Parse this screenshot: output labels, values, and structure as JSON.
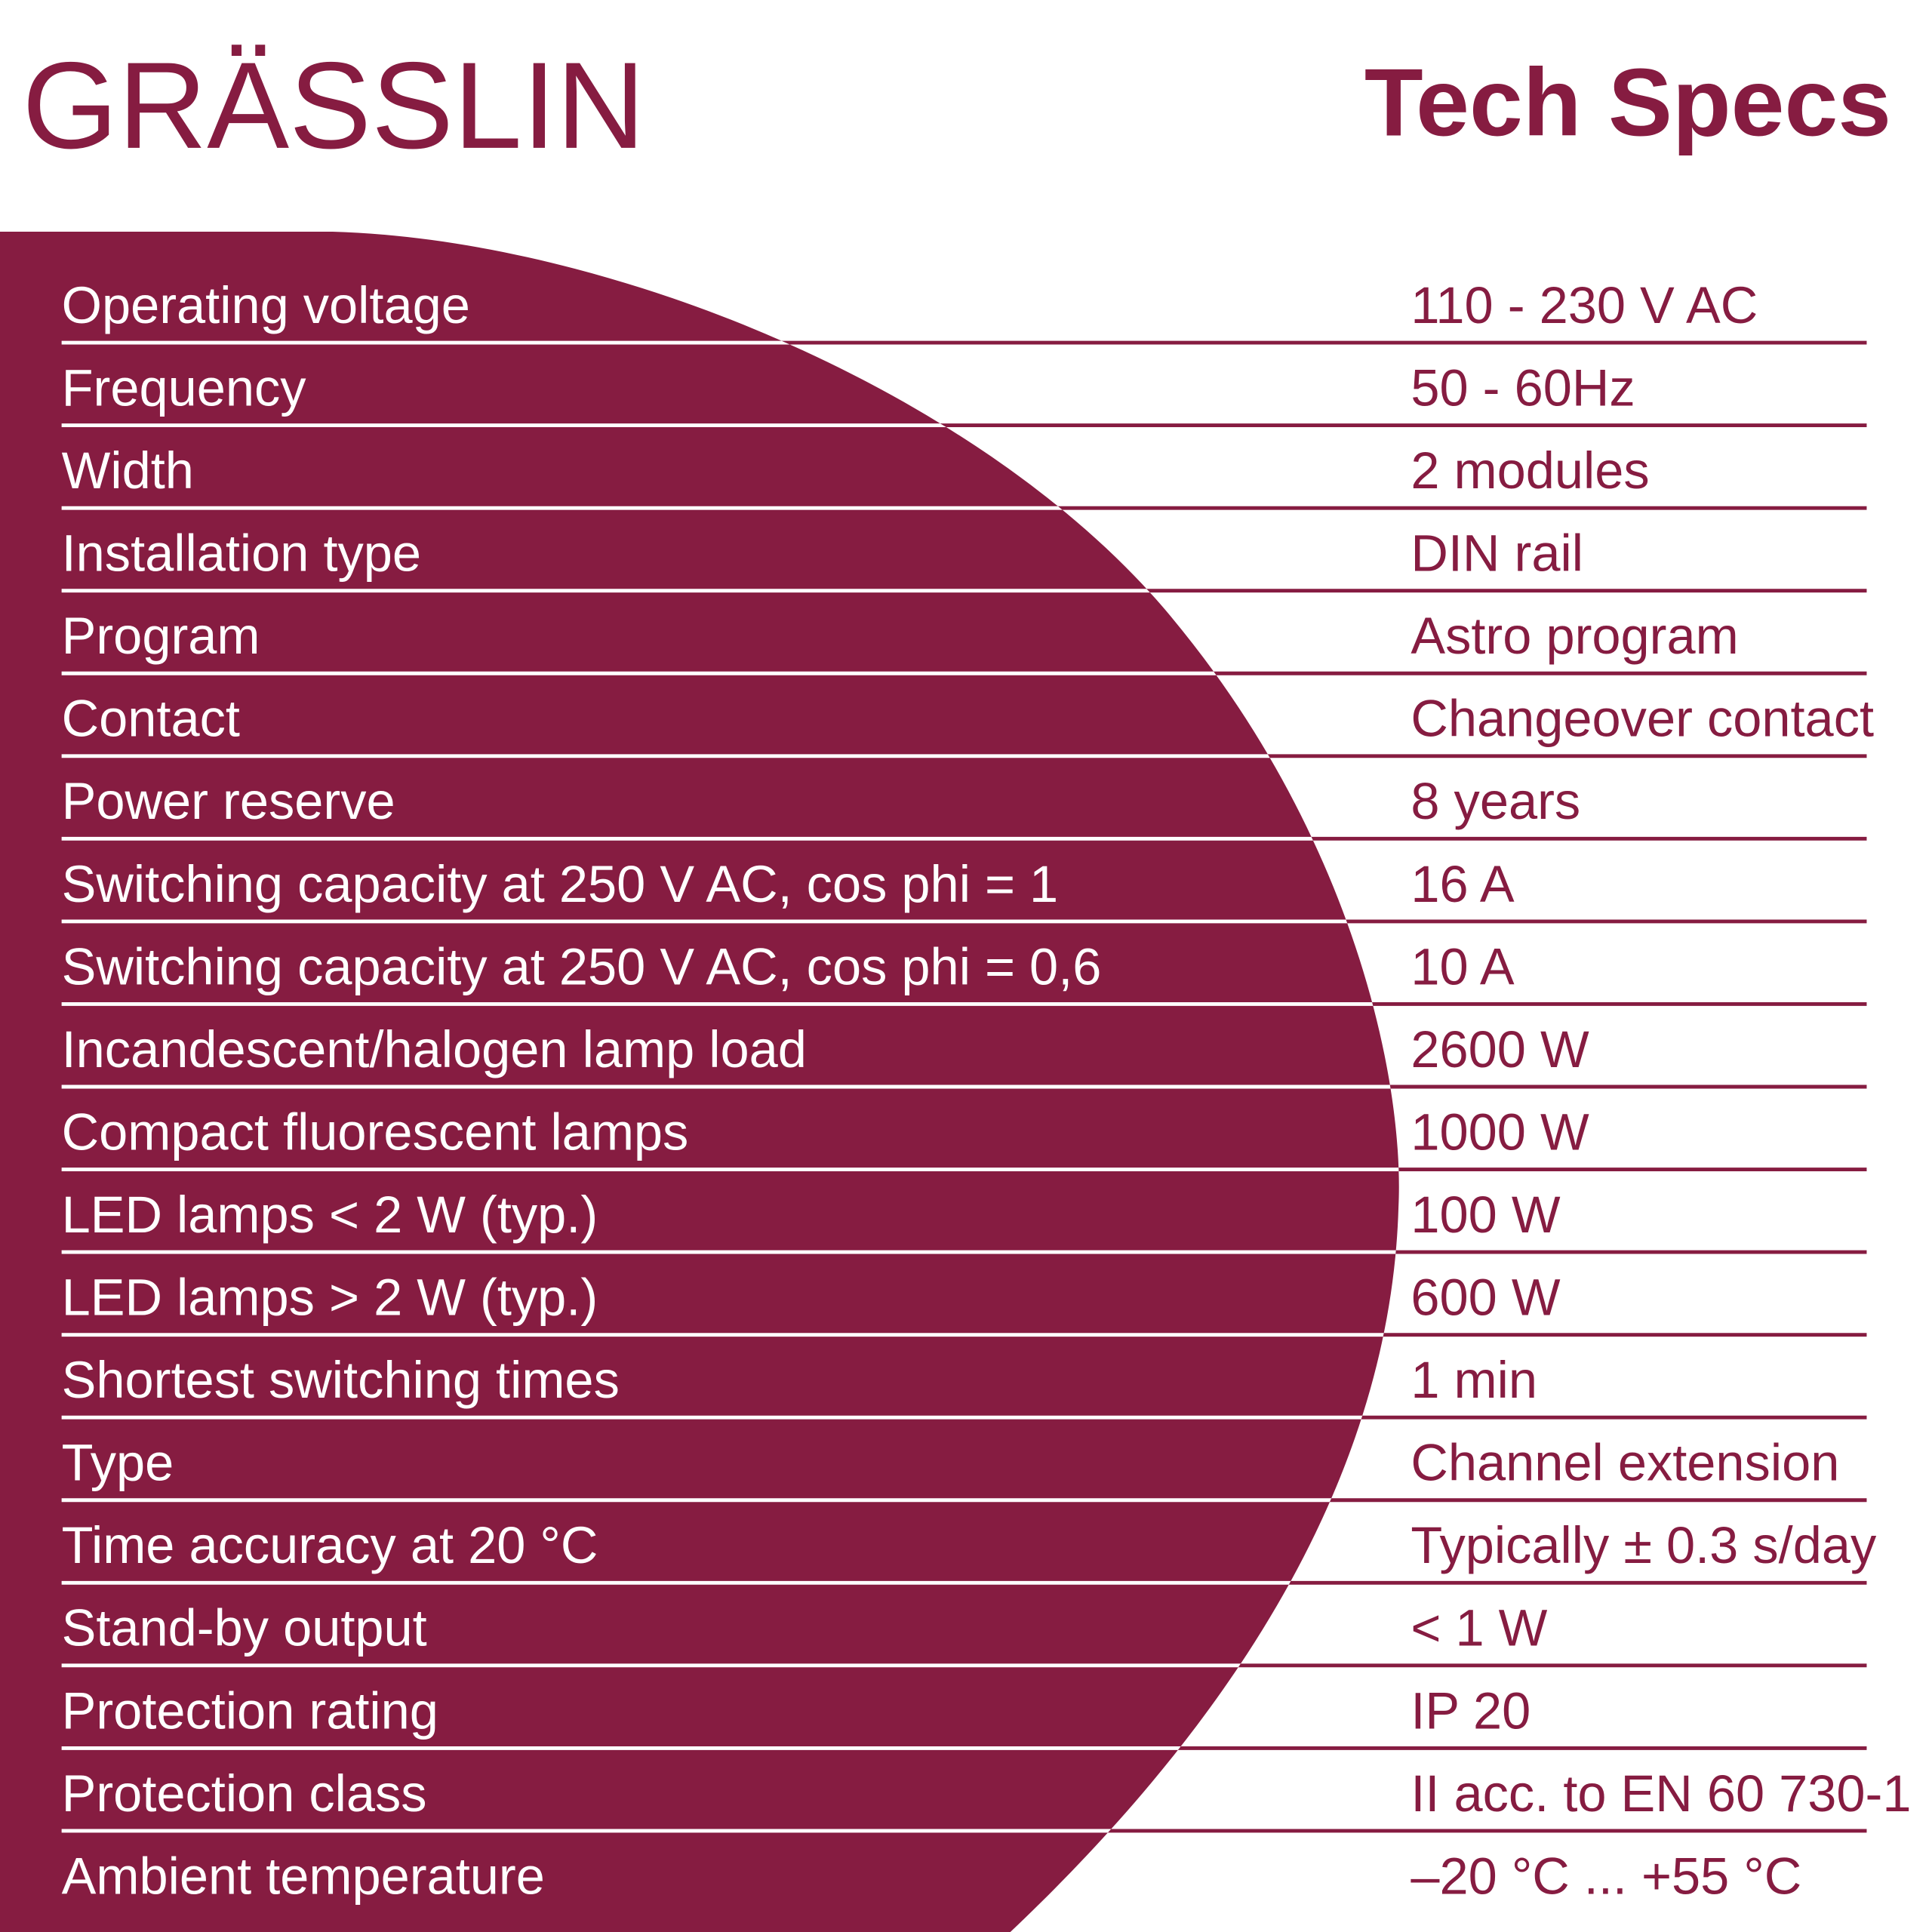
{
  "header": {
    "logo": "GRÄSSLIN",
    "title": "Tech Specs"
  },
  "specs": [
    [
      "Operating voltage",
      "110 - 230 V AC"
    ],
    [
      "Frequency",
      "50 - 60Hz"
    ],
    [
      "Width",
      "2 modules"
    ],
    [
      "Installation type",
      "DIN rail"
    ],
    [
      "Program",
      "Astro program"
    ],
    [
      "Contact",
      "Changeover contact"
    ],
    [
      "Power reserve",
      "8 years"
    ],
    [
      "Switching capacity at 250 V AC, cos phi = 1",
      "16 A"
    ],
    [
      "Switching capacity at 250 V AC, cos phi = 0,6",
      "10 A"
    ],
    [
      "Incandescent/halogen lamp load",
      "2600 W"
    ],
    [
      "Compact fluorescent lamps",
      "1000 W"
    ],
    [
      "LED lamps < 2 W (typ.)",
      "100 W"
    ],
    [
      "LED lamps > 2 W (typ.)",
      "600 W"
    ],
    [
      "Shortest switching times",
      "1 min"
    ],
    [
      "Type",
      "Channel extension"
    ],
    [
      "Time accuracy at 20 °C",
      "Typically ± 0.3 s/day"
    ],
    [
      "Stand-by output",
      "< 1 W"
    ],
    [
      "Protection rating",
      "IP 20"
    ],
    [
      "Protection class",
      "II acc. to EN 60 730-1"
    ],
    [
      "Ambient temperature",
      "–20 °C ... +55 °C"
    ]
  ]
}
